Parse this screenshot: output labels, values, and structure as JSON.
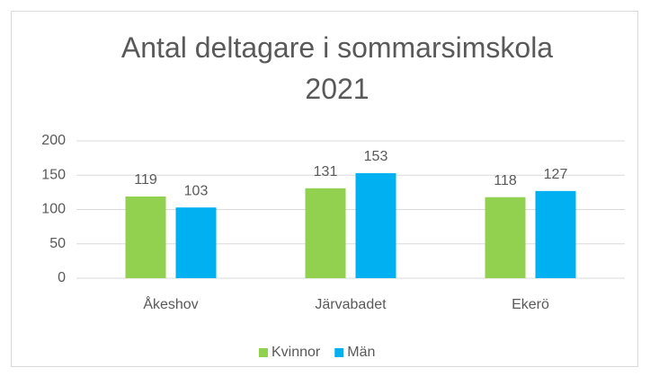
{
  "chart_data": {
    "type": "bar",
    "title": "Antal deltagare i sommarsimskola 2021",
    "categories": [
      "Åkeshov",
      "Järvabadet",
      "Ekerö"
    ],
    "series": [
      {
        "name": "Kvinnor",
        "color": "#92d050",
        "values": [
          119,
          131,
          118
        ]
      },
      {
        "name": "Män",
        "color": "#00b0f0",
        "values": [
          103,
          153,
          127
        ]
      }
    ],
    "ylim": [
      0,
      200
    ],
    "yticks": [
      0,
      50,
      100,
      150,
      200
    ],
    "grid": true,
    "legend": "bottom"
  }
}
